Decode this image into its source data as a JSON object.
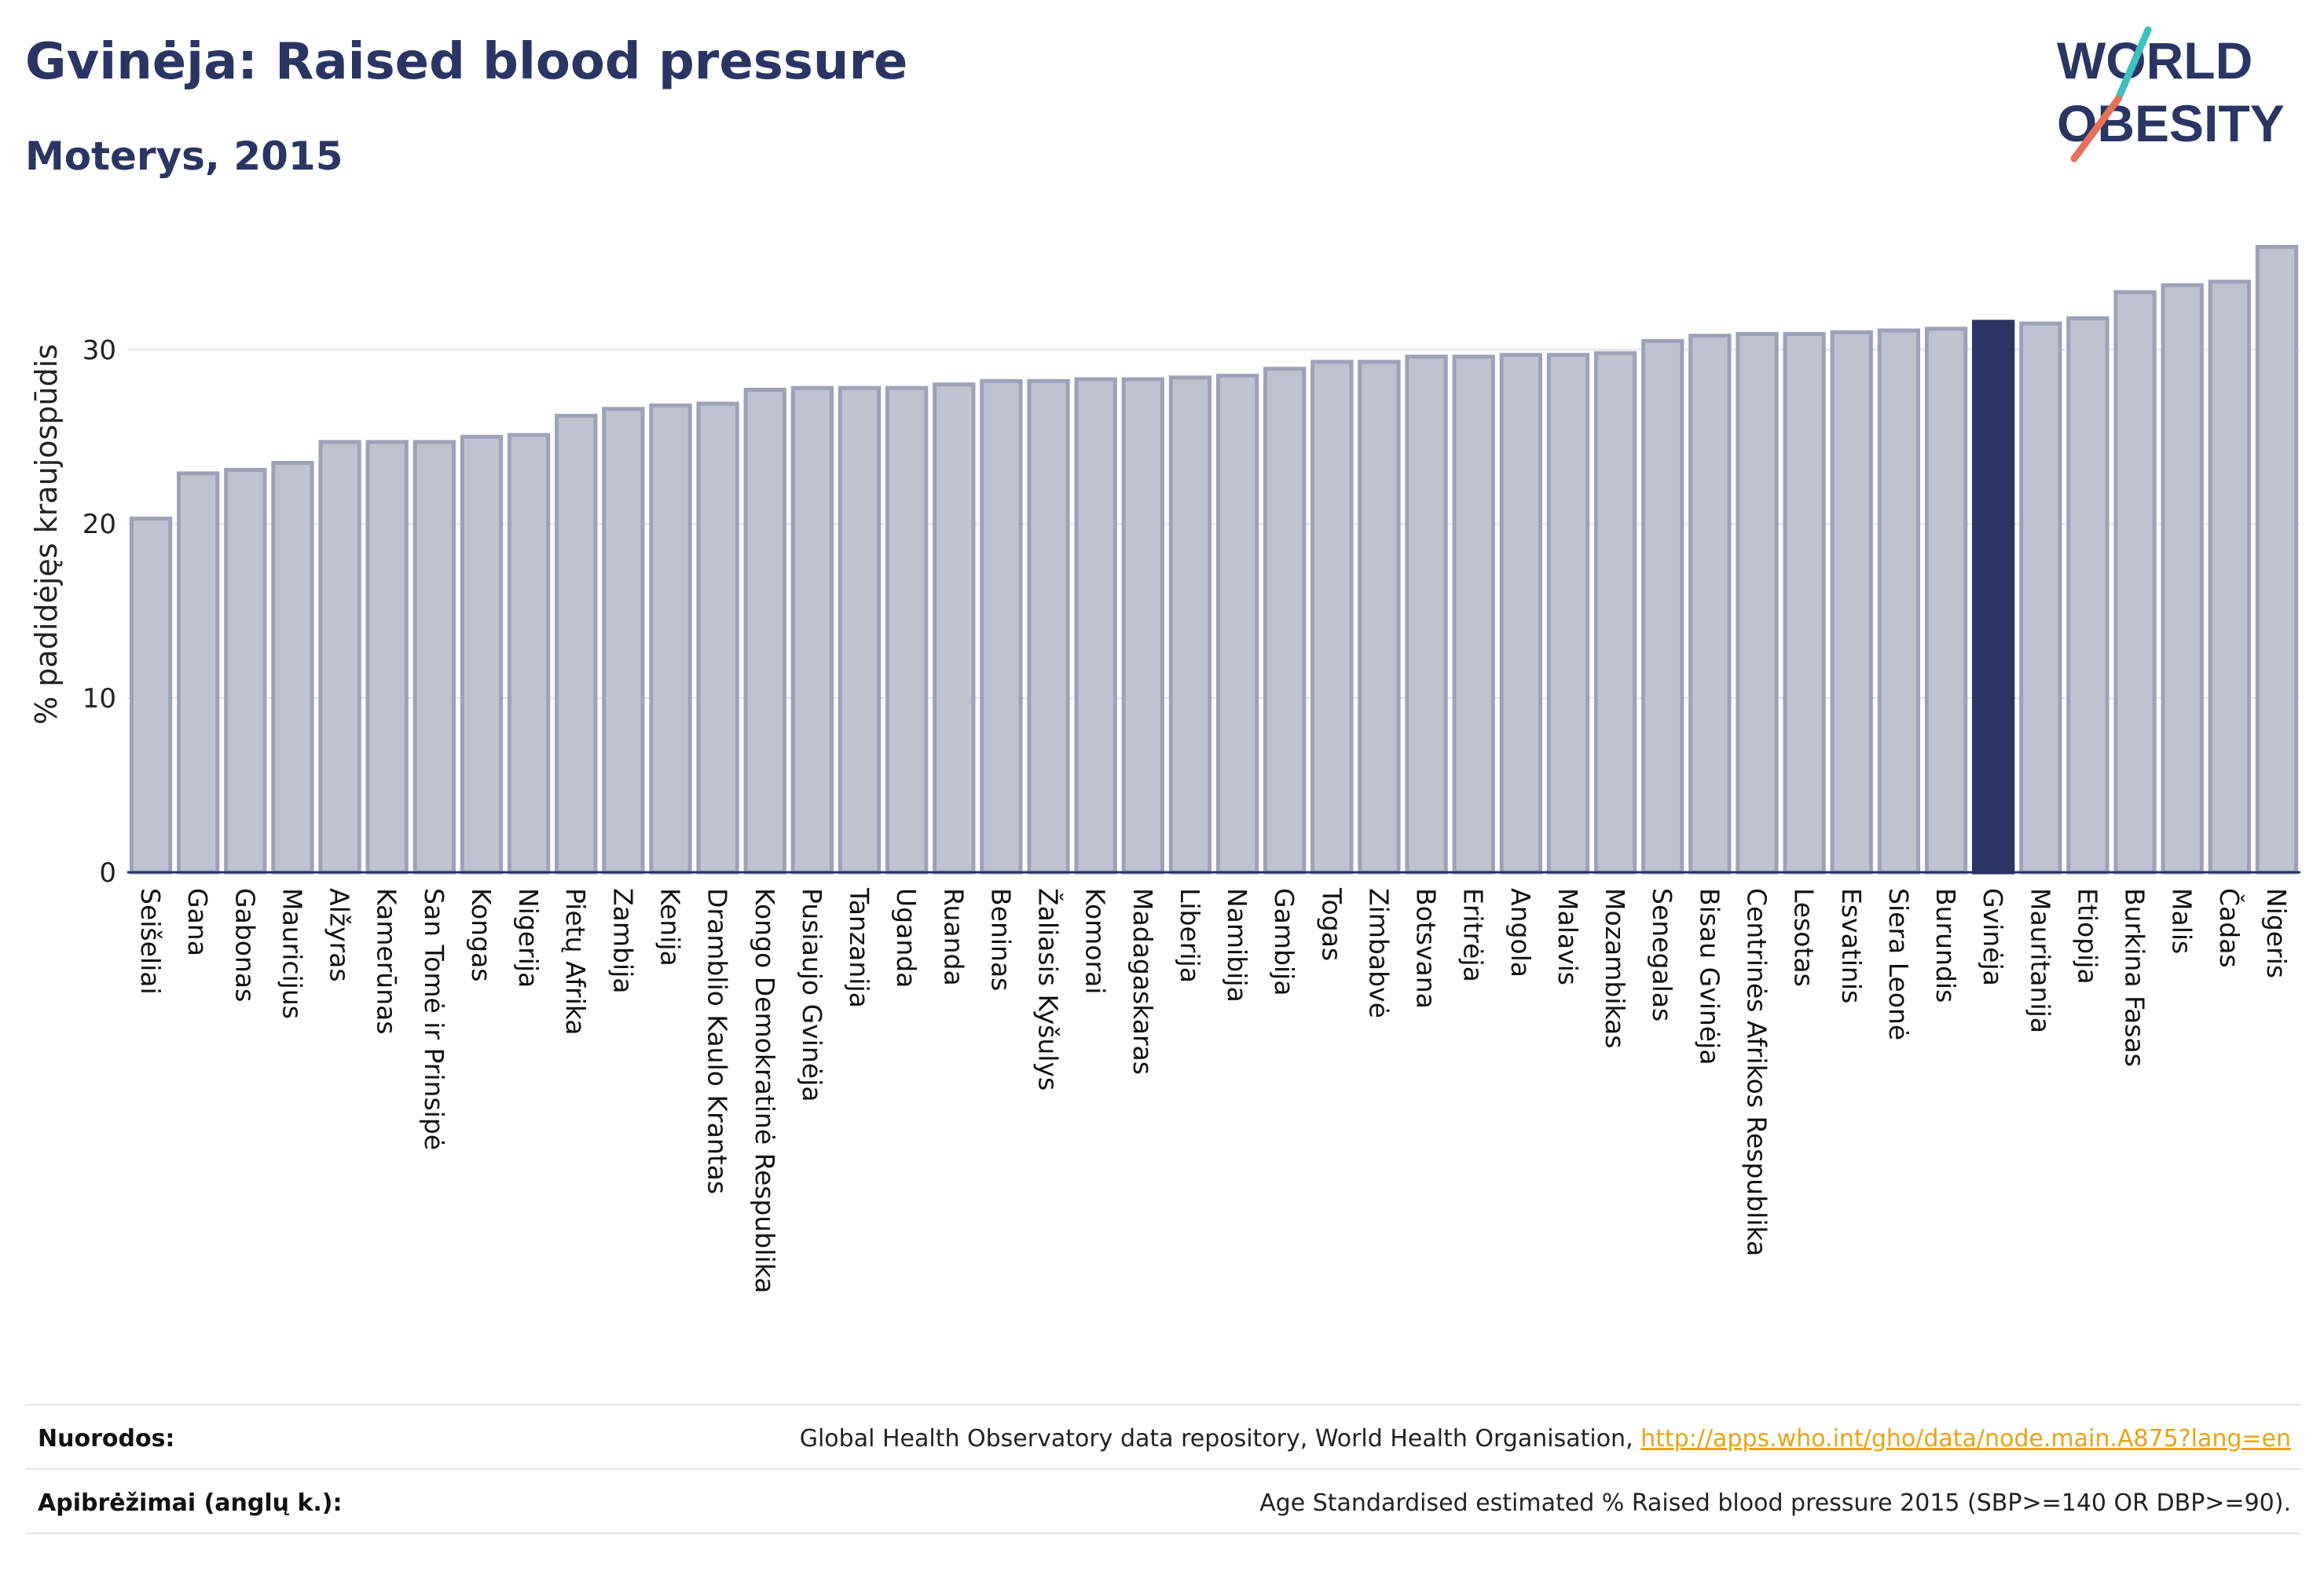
{
  "header": {
    "title": "Gvinėja: Raised blood pressure",
    "subtitle": "Moterys, 2015"
  },
  "logo": {
    "line1": "WORLD",
    "line2": "OBESITY"
  },
  "colors": {
    "bar": "#bfc2d0",
    "bar_border": "#9da2b9",
    "highlight": "#2a3563",
    "title": "#2a3563",
    "link": "#e8a317",
    "logo_teal": "#3fbfbf",
    "logo_coral": "#e8705a"
  },
  "chart_data": {
    "type": "bar",
    "ylabel": "% padidėjęs kraujospūdis",
    "ylim": [
      0,
      37
    ],
    "yticks": [
      0,
      10,
      20,
      30
    ],
    "grid": true,
    "highlight": "Gvinėja",
    "categories": [
      "Seišeliai",
      "Gana",
      "Gabonas",
      "Mauricijus",
      "Alžyras",
      "Kamerūnas",
      "San Tomė ir Prinsipė",
      "Kongas",
      "Nigerija",
      "Pietų Afrika",
      "Zambija",
      "Kenija",
      "Dramblio Kaulo Krantas",
      "Kongo Demokratinė Respublika",
      "Pusiaujo Gvinėja",
      "Tanzanija",
      "Uganda",
      "Ruanda",
      "Beninas",
      "Žaliasis Kyšulys",
      "Komorai",
      "Madagaskaras",
      "Liberija",
      "Namibija",
      "Gambija",
      "Togas",
      "Zimbabvė",
      "Botsvana",
      "Eritrėja",
      "Angola",
      "Malavis",
      "Mozambikas",
      "Senegalas",
      "Bisau Gvinėja",
      "Centrinės Afrikos Respublika",
      "Lesotas",
      "Esvatinis",
      "Siera Leonė",
      "Burundis",
      "Gvinėja",
      "Mauritanija",
      "Etiopija",
      "Burkina Fasas",
      "Malis",
      "Čadas",
      "Nigeris"
    ],
    "values": [
      20.3,
      22.9,
      23.1,
      23.5,
      24.7,
      24.7,
      24.7,
      25.0,
      25.1,
      26.2,
      26.6,
      26.8,
      26.9,
      27.7,
      27.8,
      27.8,
      27.8,
      28.0,
      28.2,
      28.2,
      28.3,
      28.3,
      28.4,
      28.5,
      28.9,
      29.3,
      29.3,
      29.6,
      29.6,
      29.7,
      29.7,
      29.8,
      30.5,
      30.8,
      30.9,
      30.9,
      31.0,
      31.1,
      31.2,
      31.6,
      31.5,
      31.8,
      33.3,
      33.7,
      33.9,
      35.9
    ]
  },
  "footer": {
    "sources_label": "Nuorodos:",
    "sources_text": "Global Health Observatory data repository, World Health Organisation, ",
    "sources_link": "http://apps.who.int/gho/data/node.main.A875?lang=en",
    "definitions_label": "Apibrėžimai (anglų k.):",
    "definitions_text": "Age Standardised estimated % Raised blood pressure 2015 (SBP>=140 OR DBP>=90)."
  }
}
